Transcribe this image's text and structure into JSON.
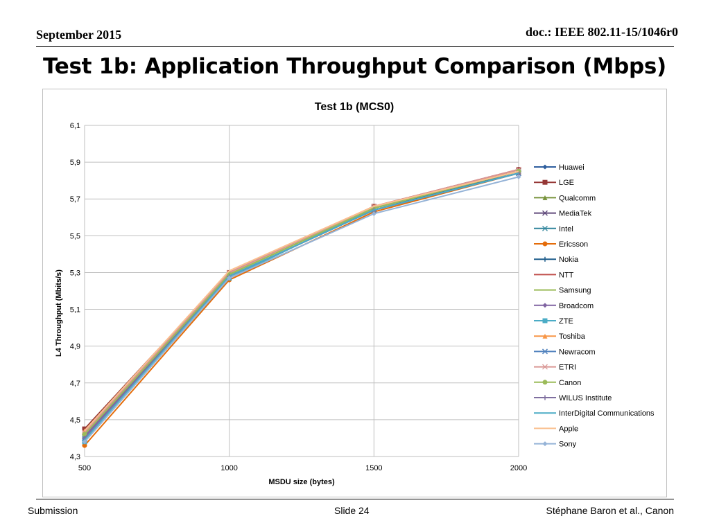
{
  "header": {
    "date": "September 2015",
    "doc": "doc.: IEEE 802.11-15/1046r0"
  },
  "slide_title": "Test 1b: Application Throughput Comparison (Mbps)",
  "footer": {
    "left": "Submission",
    "center": "Slide 24",
    "right": "Stéphane Baron et al., Canon"
  },
  "chart_data": {
    "type": "line",
    "title": "Test 1b (MCS0)",
    "xlabel": "MSDU size (bytes)",
    "ylabel": "L4 Throughput (Mbits/s)",
    "x": [
      500,
      1000,
      1500,
      2000
    ],
    "x_tick_labels": [
      "500",
      "1000",
      "1500",
      "2000"
    ],
    "ylim": [
      4.3,
      6.1
    ],
    "y_tick_labels": [
      "4,3",
      "4,5",
      "4,7",
      "4,9",
      "5,1",
      "5,3",
      "5,5",
      "5,7",
      "5,9",
      "6,1"
    ],
    "grid": true,
    "legend_position": "right",
    "series": [
      {
        "name": "Huawei",
        "color": "#2e5e9e",
        "marker": "diamond",
        "values": [
          4.4,
          5.28,
          5.64,
          5.85
        ]
      },
      {
        "name": "LGE",
        "color": "#953735",
        "marker": "square",
        "values": [
          4.45,
          5.3,
          5.66,
          5.86
        ]
      },
      {
        "name": "Qualcomm",
        "color": "#77933c",
        "marker": "triangle",
        "values": [
          4.42,
          5.29,
          5.65,
          5.85
        ]
      },
      {
        "name": "MediaTek",
        "color": "#604a7b",
        "marker": "x",
        "values": [
          4.41,
          5.28,
          5.64,
          5.84
        ]
      },
      {
        "name": "Intel",
        "color": "#31859c",
        "marker": "star",
        "values": [
          4.39,
          5.28,
          5.64,
          5.84
        ]
      },
      {
        "name": "Ericsson",
        "color": "#e46c0a",
        "marker": "circle",
        "values": [
          4.36,
          5.26,
          5.63,
          5.84
        ]
      },
      {
        "name": "Nokia",
        "color": "#1f5d8c",
        "marker": "plus",
        "values": [
          4.39,
          5.28,
          5.64,
          5.84
        ]
      },
      {
        "name": "NTT",
        "color": "#c0504d",
        "marker": "none",
        "values": [
          4.43,
          5.3,
          5.66,
          5.86
        ]
      },
      {
        "name": "Samsung",
        "color": "#9bbb59",
        "marker": "none",
        "values": [
          4.42,
          5.29,
          5.65,
          5.85
        ]
      },
      {
        "name": "Broadcom",
        "color": "#8064a2",
        "marker": "diamond",
        "values": [
          4.41,
          5.28,
          5.64,
          5.84
        ]
      },
      {
        "name": "ZTE",
        "color": "#4bacc6",
        "marker": "square",
        "values": [
          4.38,
          5.27,
          5.65,
          5.85
        ]
      },
      {
        "name": "Toshiba",
        "color": "#f79646",
        "marker": "triangle",
        "values": [
          4.44,
          5.3,
          5.66,
          5.85
        ]
      },
      {
        "name": "Newracom",
        "color": "#4f81bd",
        "marker": "x",
        "values": [
          4.4,
          5.28,
          5.64,
          5.84
        ]
      },
      {
        "name": "ETRI",
        "color": "#d99694",
        "marker": "star",
        "values": [
          4.43,
          5.3,
          5.66,
          5.86
        ]
      },
      {
        "name": "Canon",
        "color": "#9bbb59",
        "marker": "circle",
        "values": [
          4.42,
          5.29,
          5.65,
          5.85
        ]
      },
      {
        "name": "WILUS Institute",
        "color": "#7f6f9f",
        "marker": "plus",
        "values": [
          4.4,
          5.28,
          5.64,
          5.84
        ]
      },
      {
        "name": "InterDigital Communications",
        "color": "#4bacc6",
        "marker": "none",
        "values": [
          4.39,
          5.28,
          5.64,
          5.84
        ]
      },
      {
        "name": "Apple",
        "color": "#fac08f",
        "marker": "none",
        "values": [
          4.44,
          5.31,
          5.66,
          5.85
        ]
      },
      {
        "name": "Sony",
        "color": "#95b3d7",
        "marker": "diamond",
        "values": [
          4.38,
          5.27,
          5.62,
          5.82
        ]
      }
    ]
  }
}
